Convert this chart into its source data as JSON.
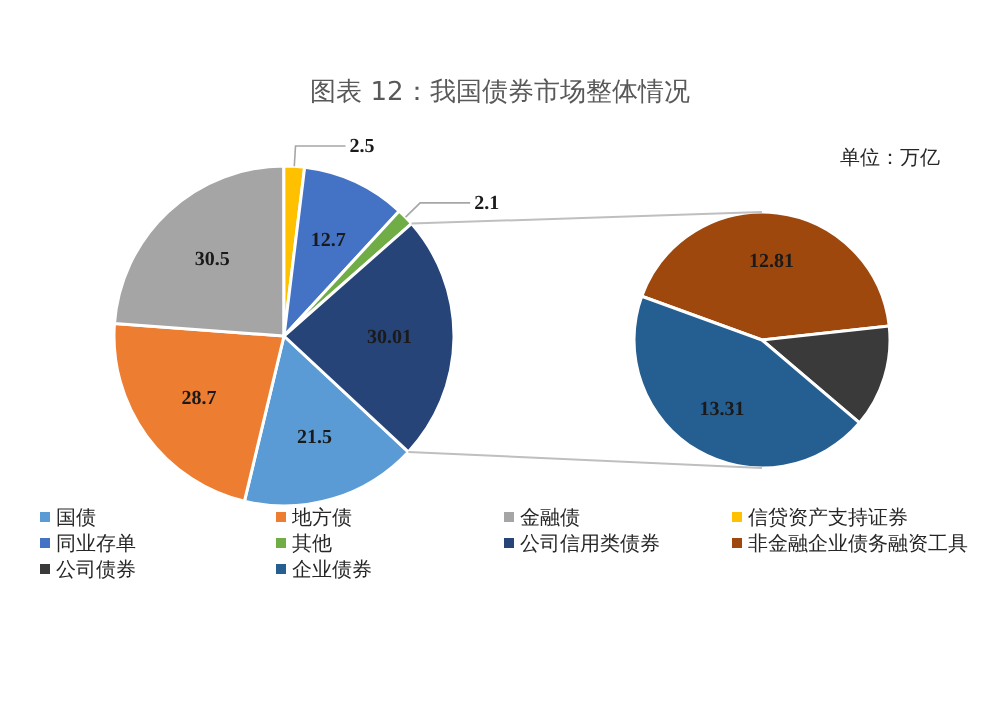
{
  "chart_data": [
    {
      "type": "pie",
      "title": "图表 12：我国债券市场整体情况",
      "legend": "bottom",
      "data_labels": true,
      "categories": [
        "国债",
        "地方债",
        "金融债",
        "信贷资产支持证券",
        "同业存单",
        "其他",
        "公司信用类债券"
      ],
      "values": [
        21.5,
        28.7,
        30.5,
        2.5,
        12.7,
        2.1,
        30.01
      ],
      "colors": [
        "#5b9bd5",
        "#ed7d31",
        "#a5a5a5",
        "#ffc000",
        "#4472c4",
        "#70ad47",
        "#264478"
      ]
    },
    {
      "type": "pie",
      "annotations": [
        "单位：万亿"
      ],
      "legend": "bottom",
      "categories": [
        "非金融企业债务融资工具",
        "公司债券",
        "企业债券"
      ],
      "values": [
        12.81,
        3.89,
        13.31
      ],
      "value_labels": [
        "12.81",
        null,
        "13.31"
      ],
      "colors": [
        "#9e480e",
        "#3a3a3a",
        "#255e91"
      ]
    }
  ]
}
